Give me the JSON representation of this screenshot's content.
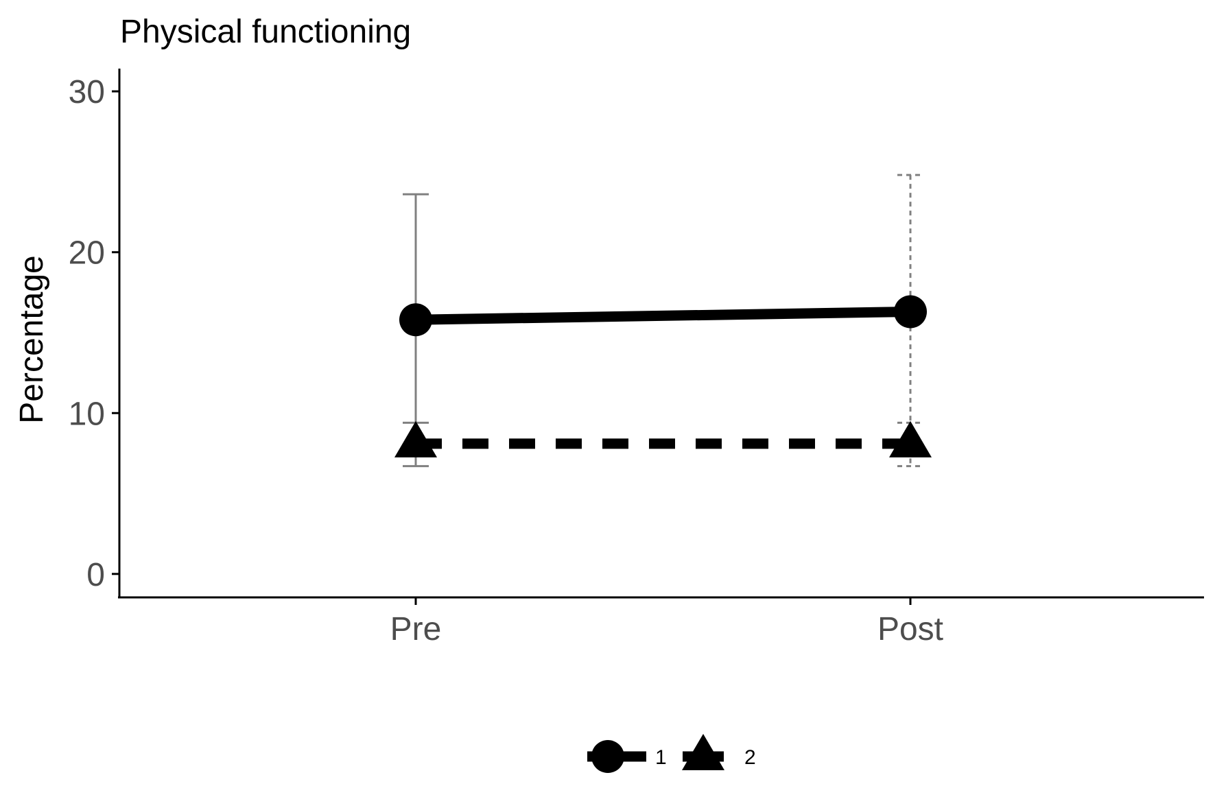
{
  "chart_data": {
    "type": "line",
    "title": "Physical functioning",
    "xlabel": "",
    "ylabel": "Percentage",
    "categories": [
      "Pre",
      "Post"
    ],
    "ylim": [
      -1.5,
      31.5
    ],
    "yticks": [
      0,
      10,
      20,
      30
    ],
    "ytick_labels": [
      "0",
      "10",
      "20",
      "30"
    ],
    "grid": false,
    "legend_position": "bottom",
    "series": [
      {
        "name": "1",
        "values": [
          15.8,
          16.3
        ],
        "error_low": [
          8.0,
          7.8
        ],
        "error_high": [
          23.6,
          24.8
        ],
        "marker": "circle",
        "line_style": "solid"
      },
      {
        "name": "2",
        "values": [
          8.1,
          8.1
        ],
        "error_low": [
          6.7,
          6.7
        ],
        "error_high": [
          9.4,
          9.4
        ],
        "marker": "triangle",
        "line_style": "dashed"
      }
    ],
    "colors": {
      "line": "#000000",
      "errorbar": "#808080",
      "axis": "#000000",
      "tick_label": "#4d4d4d"
    }
  }
}
